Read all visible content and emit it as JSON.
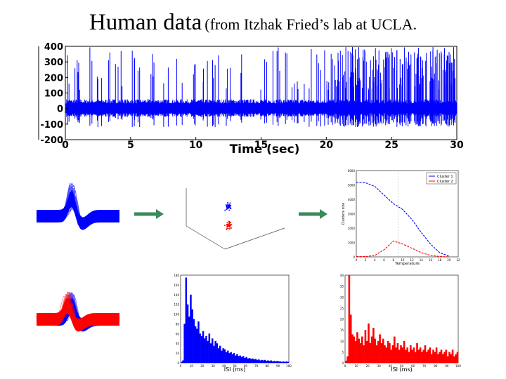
{
  "title": {
    "main": "Human data",
    "sub": "(from Itzhak Fried’s lab at UCLA."
  },
  "colors": {
    "blue": "#0000ff",
    "red": "#ff0000",
    "arrow": "#3a8a5a"
  },
  "chart_data": [
    {
      "type": "line",
      "xlabel": "Time (sec)",
      "ylabel": "",
      "xlim": [
        0,
        30
      ],
      "ylim": [
        -200,
        400
      ],
      "x_ticks": [
        "0",
        "5",
        "10",
        "15",
        "20",
        "25",
        "30"
      ],
      "y_ticks": [
        "400",
        "300",
        "200",
        "100",
        "0",
        "-100",
        "-200"
      ],
      "series": [
        {
          "color": "blue",
          "baseline_amplitude": 60
        }
      ]
    },
    {
      "type": "line",
      "panel": "spike-waveforms-single",
      "series": [
        {
          "color": "blue"
        }
      ]
    },
    {
      "type": "scatter",
      "panel": "feature-space-3d",
      "series": [
        {
          "color": "blue",
          "center": [
            0.5,
            0.4
          ]
        },
        {
          "color": "red",
          "center": [
            0.5,
            0.7
          ]
        }
      ]
    },
    {
      "type": "line",
      "panel": "cluster-size-vs-temperature",
      "xlabel": "Temperature",
      "ylabel": "Clusters size",
      "xlim": [
        0,
        22
      ],
      "ylim": [
        0,
        6000
      ],
      "x_ticks": [
        "0",
        "2",
        "4",
        "6",
        "8",
        "10",
        "12",
        "14",
        "16",
        "18",
        "20",
        "22"
      ],
      "y_ticks": [
        "6000",
        "5000",
        "4000",
        "3000",
        "2000",
        "1000",
        "0"
      ],
      "legend": [
        "Cluster 1",
        "Cluster 2"
      ],
      "legend_position": "top-right",
      "series": [
        {
          "name": "Cluster 1",
          "color": "blue",
          "x": [
            0,
            2,
            4,
            6,
            8,
            10,
            12,
            14,
            16,
            18,
            20
          ],
          "values": [
            5200,
            5150,
            4900,
            4300,
            3700,
            3300,
            2600,
            1700,
            900,
            300,
            50
          ]
        },
        {
          "name": "Cluster 2",
          "color": "red",
          "x": [
            0,
            2,
            4,
            6,
            8,
            10,
            12,
            14,
            16,
            18,
            20
          ],
          "values": [
            20,
            20,
            100,
            500,
            1100,
            900,
            600,
            300,
            100,
            30,
            0
          ]
        }
      ]
    },
    {
      "type": "line",
      "panel": "spike-waveforms-two-clusters",
      "series": [
        {
          "color": "blue"
        },
        {
          "color": "red"
        }
      ]
    },
    {
      "type": "bar",
      "panel": "isi-cluster-1",
      "xlabel": "ISI (ms)",
      "ylabel": "",
      "ylim": [
        0,
        180
      ],
      "x_ticks": [
        "0",
        "10",
        "20",
        "30",
        "40",
        "50",
        "60",
        "70",
        "80",
        "90",
        "100"
      ],
      "y_ticks": [
        "180",
        "160",
        "140",
        "120",
        "100",
        "80",
        "60",
        "40",
        "20",
        "0"
      ],
      "series": [
        {
          "color": "blue",
          "values": [
            2,
            5,
            80,
            175,
            120,
            95,
            140,
            110,
            90,
            75,
            70,
            85,
            60,
            55,
            65,
            50,
            55,
            45,
            60,
            40,
            50,
            35,
            45,
            40,
            30,
            35,
            25,
            30,
            28,
            22,
            25,
            20,
            22,
            18,
            20,
            15,
            18,
            14,
            15,
            12,
            14,
            10,
            12,
            9,
            10,
            8,
            9,
            7,
            8,
            6,
            7,
            5,
            6,
            5,
            6,
            4,
            5,
            4,
            5,
            3,
            4,
            3,
            4,
            3,
            3,
            2,
            3,
            2,
            3,
            2
          ]
        }
      ]
    },
    {
      "type": "bar",
      "panel": "isi-cluster-2",
      "xlabel": "ISI (ms)",
      "ylabel": "",
      "ylim": [
        0,
        40
      ],
      "x_ticks": [
        "0",
        "10",
        "20",
        "30",
        "40",
        "50",
        "60",
        "70",
        "80",
        "90",
        "100"
      ],
      "y_ticks": [
        "40",
        "35",
        "30",
        "25",
        "20",
        "15",
        "10",
        "5",
        "0"
      ],
      "series": [
        {
          "color": "red",
          "values": [
            1,
            3,
            40,
            22,
            13,
            12,
            10,
            14,
            11,
            9,
            12,
            8,
            15,
            10,
            18,
            9,
            12,
            16,
            11,
            8,
            10,
            13,
            9,
            11,
            8,
            7,
            10,
            9,
            6,
            8,
            12,
            7,
            9,
            6,
            8,
            7,
            10,
            6,
            7,
            5,
            8,
            6,
            7,
            5,
            9,
            6,
            7,
            5,
            6,
            8,
            5,
            6,
            7,
            4,
            6,
            5,
            7,
            4,
            5,
            6,
            4,
            5,
            6,
            3,
            5,
            4,
            6,
            3,
            4,
            5
          ]
        }
      ]
    }
  ]
}
